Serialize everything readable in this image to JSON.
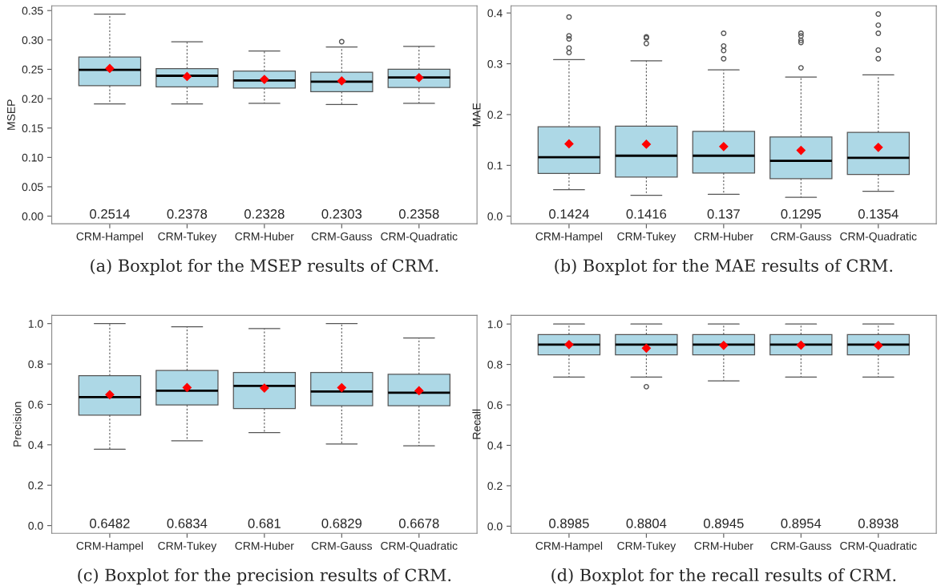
{
  "chart_data": [
    {
      "type": "box",
      "title": "(a) Boxplot for the MSEP results of CRM.",
      "ylabel": "MSEP",
      "categories": [
        "CRM-Hampel",
        "CRM-Tukey",
        "CRM-Huber",
        "CRM-Gauss",
        "CRM-Quadratic"
      ],
      "color": "#add8e6",
      "ylim": [
        -0.013,
        0.358
      ],
      "yticks": [
        {
          "value": 0,
          "label": "0.00"
        },
        0.05,
        {
          "value": 0.1,
          "label": "0.10"
        },
        0.15,
        {
          "value": 0.2,
          "label": "0.20"
        },
        0.25,
        {
          "value": 0.3,
          "label": "0.30"
        },
        0.35
      ],
      "boxes": [
        {
          "low": 0.191,
          "q1": 0.222,
          "median": 0.249,
          "q3": 0.271,
          "high": 0.344,
          "mean": 0.2514
        },
        {
          "low": 0.191,
          "q1": 0.22,
          "median": 0.239,
          "q3": 0.251,
          "high": 0.297,
          "mean": 0.2378
        },
        {
          "low": 0.192,
          "q1": 0.218,
          "median": 0.231,
          "q3": 0.247,
          "high": 0.281,
          "mean": 0.2328
        },
        {
          "low": 0.19,
          "q1": 0.212,
          "median": 0.229,
          "q3": 0.245,
          "high": 0.288,
          "mean": 0.2303,
          "outliers": [
            0.297
          ]
        },
        {
          "low": 0.192,
          "q1": 0.219,
          "median": 0.236,
          "q3": 0.25,
          "high": 0.289,
          "mean": 0.2358
        }
      ],
      "annotations": [
        "0.2514",
        "0.2378",
        "0.2328",
        "0.2303",
        "0.2358"
      ]
    },
    {
      "type": "box",
      "title": "(b) Boxplot for the MAE results of CRM.",
      "ylabel": "MAE",
      "categories": [
        "CRM-Hampel",
        "CRM-Tukey",
        "CRM-Huber",
        "CRM-Gauss",
        "CRM-Quadratic"
      ],
      "color": "#add8e6",
      "ylim": [
        -0.015,
        0.414
      ],
      "yticks": [
        {
          "value": 0,
          "label": "0.0"
        },
        0.1,
        0.2,
        0.3,
        0.4
      ],
      "boxes": [
        {
          "low": 0.052,
          "q1": 0.084,
          "median": 0.116,
          "q3": 0.176,
          "high": 0.308,
          "mean": 0.1424,
          "outliers": [
            0.322,
            0.331,
            0.349,
            0.355,
            0.392
          ]
        },
        {
          "low": 0.041,
          "q1": 0.077,
          "median": 0.119,
          "q3": 0.177,
          "high": 0.306,
          "mean": 0.1416,
          "outliers": [
            0.34,
            0.351,
            0.353
          ]
        },
        {
          "low": 0.043,
          "q1": 0.085,
          "median": 0.119,
          "q3": 0.167,
          "high": 0.288,
          "mean": 0.137,
          "outliers": [
            0.31,
            0.326,
            0.335,
            0.36
          ]
        },
        {
          "low": 0.037,
          "q1": 0.074,
          "median": 0.109,
          "q3": 0.156,
          "high": 0.274,
          "mean": 0.1295,
          "outliers": [
            0.292,
            0.342,
            0.346,
            0.355,
            0.36
          ]
        },
        {
          "low": 0.049,
          "q1": 0.082,
          "median": 0.115,
          "q3": 0.165,
          "high": 0.278,
          "mean": 0.1354,
          "outliers": [
            0.31,
            0.327,
            0.36,
            0.376,
            0.398
          ]
        }
      ],
      "annotations": [
        "0.1424",
        "0.1416",
        "0.137",
        "0.1295",
        "0.1354"
      ]
    },
    {
      "type": "box",
      "title": "(c) Boxplot for the precision results of CRM.",
      "ylabel": "Precision",
      "categories": [
        "CRM-Hampel",
        "CRM-Tukey",
        "CRM-Huber",
        "CRM-Gauss",
        "CRM-Quadratic"
      ],
      "color": "#add8e6",
      "ylim": [
        -0.038,
        1.041
      ],
      "yticks": [
        {
          "value": 0,
          "label": "0.0"
        },
        0.2,
        0.4,
        0.6,
        0.8,
        {
          "value": 1,
          "label": "1.0"
        }
      ],
      "boxes": [
        {
          "low": 0.378,
          "q1": 0.547,
          "median": 0.636,
          "q3": 0.742,
          "high": 1.0,
          "mean": 0.6482
        },
        {
          "low": 0.42,
          "q1": 0.597,
          "median": 0.668,
          "q3": 0.768,
          "high": 0.984,
          "mean": 0.6834
        },
        {
          "low": 0.46,
          "q1": 0.58,
          "median": 0.692,
          "q3": 0.758,
          "high": 0.975,
          "mean": 0.681
        },
        {
          "low": 0.404,
          "q1": 0.593,
          "median": 0.664,
          "q3": 0.758,
          "high": 1.0,
          "mean": 0.6829
        },
        {
          "low": 0.395,
          "q1": 0.593,
          "median": 0.658,
          "q3": 0.749,
          "high": 0.929,
          "mean": 0.6678
        }
      ],
      "annotations": [
        "0.6482",
        "0.6834",
        "0.681",
        "0.6829",
        "0.6678"
      ]
    },
    {
      "type": "box",
      "title": "(d) Boxplot for the recall results of CRM.",
      "ylabel": "Recall",
      "categories": [
        "CRM-Hampel",
        "CRM-Tukey",
        "CRM-Huber",
        "CRM-Gauss",
        "CRM-Quadratic"
      ],
      "color": "#add8e6",
      "ylim": [
        -0.035,
        1.043
      ],
      "yticks": [
        {
          "value": 0,
          "label": "0.0"
        },
        0.2,
        0.4,
        0.6,
        0.8,
        {
          "value": 1,
          "label": "1.0"
        }
      ],
      "boxes": [
        {
          "low": 0.738,
          "q1": 0.848,
          "median": 0.898,
          "q3": 0.948,
          "high": 1.0,
          "mean": 0.8985
        },
        {
          "low": 0.738,
          "q1": 0.848,
          "median": 0.898,
          "q3": 0.948,
          "high": 1.0,
          "mean": 0.8804,
          "outliers": [
            0.69
          ]
        },
        {
          "low": 0.719,
          "q1": 0.848,
          "median": 0.898,
          "q3": 0.948,
          "high": 1.0,
          "mean": 0.8945
        },
        {
          "low": 0.738,
          "q1": 0.848,
          "median": 0.898,
          "q3": 0.948,
          "high": 1.0,
          "mean": 0.8954
        },
        {
          "low": 0.738,
          "q1": 0.848,
          "median": 0.898,
          "q3": 0.948,
          "high": 1.0,
          "mean": 0.8938
        }
      ],
      "annotations": [
        "0.8985",
        "0.8804",
        "0.8945",
        "0.8954",
        "0.8938"
      ]
    }
  ]
}
